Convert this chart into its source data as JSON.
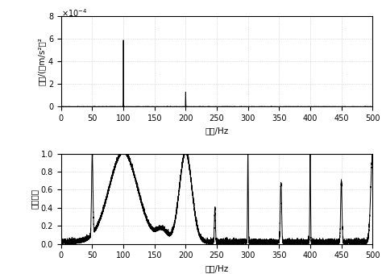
{
  "subplot1": {
    "ylabel": "幅値/(（m/s²）²",
    "xlabel": "频率/Hz",
    "xlim": [
      0,
      500
    ],
    "ylim": [
      0,
      0.0008
    ],
    "ytick_labels": [
      "0",
      "2",
      "4",
      "6",
      "8"
    ],
    "yticks": [
      0,
      0.0002,
      0.0004,
      0.0006,
      0.0008
    ],
    "xticks": [
      0,
      50,
      100,
      150,
      200,
      250,
      300,
      350,
      400,
      450,
      500
    ],
    "peak1_freq": 100,
    "peak1_amp": 0.00059,
    "peak2_freq": 200,
    "peak2_amp": 0.00013,
    "noise_level": 5e-07,
    "line_color": "#000000",
    "grid_color": "#c0c0c0",
    "bg_color": "#ffffff"
  },
  "subplot2": {
    "ylabel": "相干系数",
    "xlabel": "频率/Hz",
    "xlim": [
      0,
      500
    ],
    "ylim": [
      0,
      1.0
    ],
    "yticks": [
      0,
      0.2,
      0.4,
      0.6,
      0.8,
      1.0
    ],
    "xticks": [
      0,
      50,
      100,
      150,
      200,
      250,
      300,
      350,
      400,
      450,
      500
    ],
    "line_color": "#000000",
    "grid_color": "#c0c0c0",
    "bg_color": "#ffffff"
  }
}
